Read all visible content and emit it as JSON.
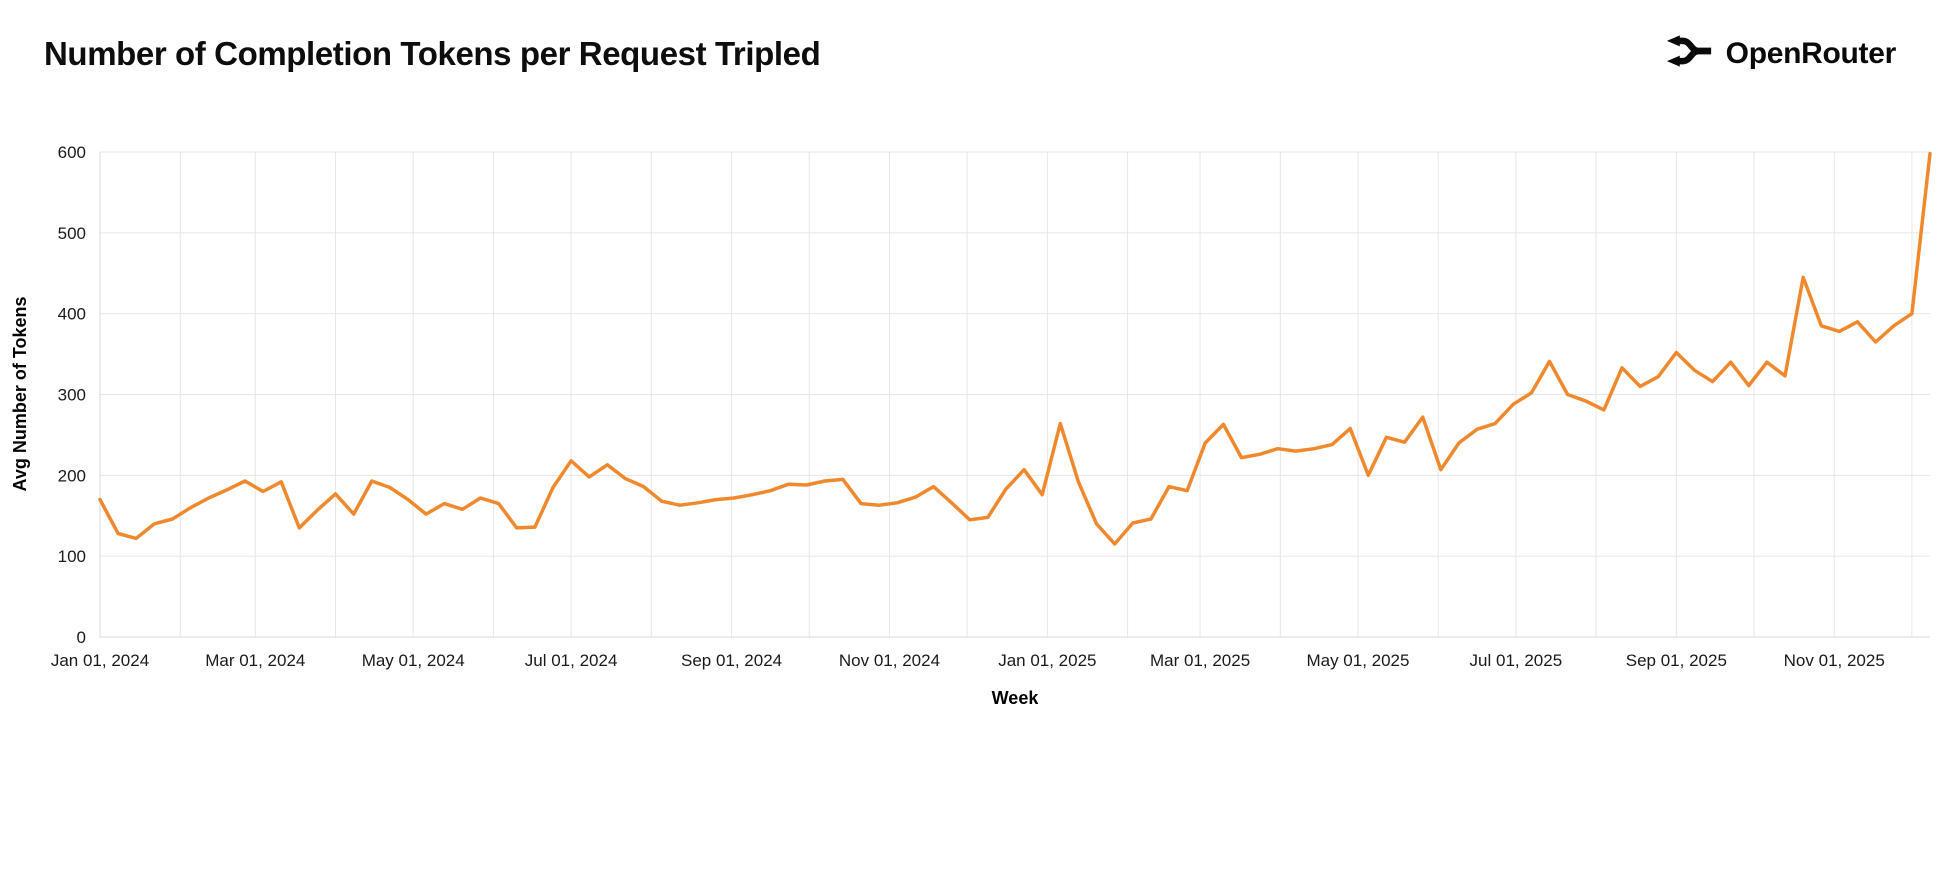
{
  "header": {
    "title": "Number of Completion Tokens per Request Tripled",
    "brand": "OpenRouter"
  },
  "colors": {
    "line": "#F0892D",
    "grid": "#e6e6e6",
    "axis": "#d9d9d9",
    "text": "#1a1a1a",
    "brand_black": "#0a0a0a"
  },
  "chart_data": {
    "type": "line",
    "title": "Number of Completion Tokens per Request Tripled",
    "xlabel": "Week",
    "ylabel": "Avg Number of Tokens",
    "grid": true,
    "legend": "none",
    "line_color": "#F0892D",
    "y_axis": {
      "label": "Avg Number of Tokens",
      "min": 0,
      "max": 600,
      "ticks": [
        0,
        100,
        200,
        300,
        400,
        500,
        600
      ]
    },
    "x_axis": {
      "label": "Week",
      "x_start_date": "2024-01-01",
      "x_step_days": 7,
      "total_days": 707,
      "ticks": [
        {
          "label": "Jan 01, 2024",
          "day": 0
        },
        {
          "label": "Mar 01, 2024",
          "day": 60
        },
        {
          "label": "May 01, 2024",
          "day": 121
        },
        {
          "label": "Jul 01, 2024",
          "day": 182
        },
        {
          "label": "Sep 01, 2024",
          "day": 244
        },
        {
          "label": "Nov 01, 2024",
          "day": 305
        },
        {
          "label": "Jan 01, 2025",
          "day": 366
        },
        {
          "label": "Mar 01, 2025",
          "day": 425
        },
        {
          "label": "May 01, 2025",
          "day": 486
        },
        {
          "label": "Jul 01, 2025",
          "day": 547
        },
        {
          "label": "Sep 01, 2025",
          "day": 609
        },
        {
          "label": "Nov 01, 2025",
          "day": 670
        }
      ],
      "month_grid_days": [
        0,
        31,
        60,
        91,
        121,
        152,
        182,
        213,
        244,
        274,
        305,
        335,
        366,
        397,
        425,
        456,
        486,
        517,
        547,
        578,
        609,
        639,
        670,
        700
      ]
    },
    "series": [
      {
        "name": "Avg Number of Tokens",
        "values": [
          170,
          128,
          122,
          140,
          146,
          160,
          172,
          182,
          193,
          180,
          192,
          135,
          157,
          177,
          152,
          193,
          185,
          170,
          152,
          165,
          158,
          172,
          165,
          135,
          136,
          185,
          218,
          198,
          213,
          196,
          186,
          168,
          163,
          166,
          170,
          172,
          176,
          181,
          189,
          188,
          193,
          195,
          165,
          163,
          166,
          173,
          186,
          166,
          145,
          148,
          183,
          207,
          176,
          264,
          192,
          140,
          115,
          141,
          146,
          186,
          181,
          240,
          263,
          222,
          226,
          233,
          230,
          233,
          238,
          258,
          200,
          247,
          241,
          272,
          207,
          240,
          257,
          264,
          288,
          302,
          341,
          300,
          292,
          281,
          333,
          310,
          322,
          352,
          330,
          316,
          340,
          311,
          340,
          323,
          445,
          385,
          378,
          390,
          365,
          385,
          400,
          598
        ]
      }
    ]
  }
}
